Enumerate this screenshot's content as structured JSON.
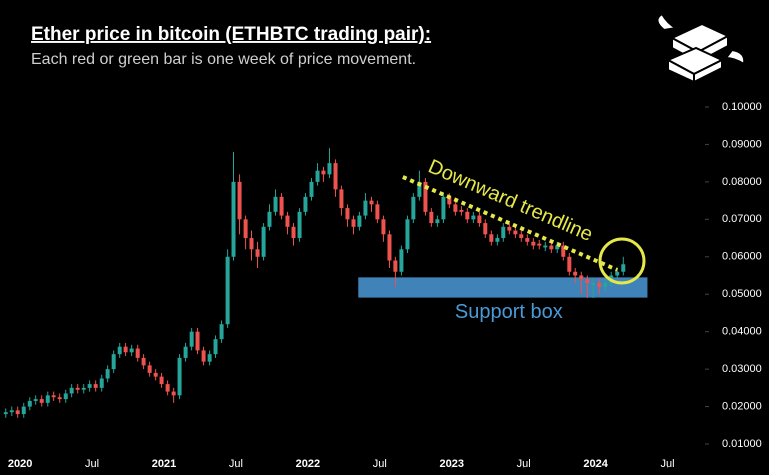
{
  "chart_data": {
    "type": "candlestick",
    "title": "Ether price in bitcoin (ETHBTC trading pair):",
    "subtitle": "Each red or green bar is one week of price movement.",
    "up_color": "#26a69a",
    "down_color": "#ef5350",
    "xlim": [
      2019.86,
      2024.76
    ],
    "ylim": [
      0.003,
      0.105
    ],
    "xticks": [
      {
        "value": 2020,
        "label": "2020"
      },
      {
        "value": 2020.5,
        "label": "Jul"
      },
      {
        "value": 2021,
        "label": "2021"
      },
      {
        "value": 2021.5,
        "label": "Jul"
      },
      {
        "value": 2022,
        "label": "2022"
      },
      {
        "value": 2022.5,
        "label": "Jul"
      },
      {
        "value": 2023,
        "label": "2023"
      },
      {
        "value": 2023.5,
        "label": "Jul"
      },
      {
        "value": 2024,
        "label": "2024"
      },
      {
        "value": 2024.5,
        "label": "Jul"
      }
    ],
    "yticks": [
      {
        "value": 0.01,
        "label": "0.01000"
      },
      {
        "value": 0.02,
        "label": "0.02000"
      },
      {
        "value": 0.03,
        "label": "0.03000"
      },
      {
        "value": 0.04,
        "label": "0.04000"
      },
      {
        "value": 0.05,
        "label": "0.05000"
      },
      {
        "value": 0.06,
        "label": "0.06000"
      },
      {
        "value": 0.07,
        "label": "0.07000"
      },
      {
        "value": 0.08,
        "label": "0.08000"
      },
      {
        "value": 0.09,
        "label": "0.09000"
      },
      {
        "value": 0.1,
        "label": "0.10000"
      }
    ],
    "x": [
      2019.9,
      2019.942,
      2019.983,
      2020.025,
      2020.067,
      2020.108,
      2020.15,
      2020.192,
      2020.233,
      2020.275,
      2020.317,
      2020.358,
      2020.4,
      2020.442,
      2020.483,
      2020.525,
      2020.567,
      2020.608,
      2020.65,
      2020.692,
      2020.733,
      2020.775,
      2020.817,
      2020.858,
      2020.9,
      2020.942,
      2020.983,
      2021.025,
      2021.067,
      2021.108,
      2021.15,
      2021.192,
      2021.233,
      2021.275,
      2021.317,
      2021.358,
      2021.4,
      2021.442,
      2021.483,
      2021.525,
      2021.567,
      2021.608,
      2021.65,
      2021.692,
      2021.733,
      2021.775,
      2021.817,
      2021.858,
      2021.9,
      2021.942,
      2021.983,
      2022.025,
      2022.067,
      2022.108,
      2022.15,
      2022.192,
      2022.233,
      2022.275,
      2022.317,
      2022.358,
      2022.4,
      2022.442,
      2022.483,
      2022.525,
      2022.567,
      2022.608,
      2022.65,
      2022.692,
      2022.733,
      2022.775,
      2022.817,
      2022.858,
      2022.9,
      2022.942,
      2022.983,
      2023.025,
      2023.067,
      2023.108,
      2023.15,
      2023.192,
      2023.233,
      2023.275,
      2023.317,
      2023.358,
      2023.4,
      2023.442,
      2023.483,
      2023.525,
      2023.567,
      2023.608,
      2023.65,
      2023.692,
      2023.733,
      2023.775,
      2023.817,
      2023.858,
      2023.9,
      2023.942,
      2023.983,
      2024.025,
      2024.067,
      2024.108,
      2024.15,
      2024.192
    ],
    "open": [
      0.018,
      0.0185,
      0.019,
      0.018,
      0.02,
      0.0215,
      0.022,
      0.021,
      0.023,
      0.0225,
      0.022,
      0.0235,
      0.025,
      0.0245,
      0.025,
      0.026,
      0.025,
      0.0275,
      0.03,
      0.034,
      0.036,
      0.0345,
      0.0355,
      0.033,
      0.031,
      0.029,
      0.028,
      0.026,
      0.024,
      0.023,
      0.033,
      0.036,
      0.04,
      0.035,
      0.032,
      0.034,
      0.038,
      0.042,
      0.06,
      0.08,
      0.07,
      0.065,
      0.062,
      0.06,
      0.068,
      0.072,
      0.076,
      0.071,
      0.068,
      0.065,
      0.072,
      0.076,
      0.08,
      0.083,
      0.082,
      0.085,
      0.078,
      0.073,
      0.07,
      0.068,
      0.071,
      0.075,
      0.074,
      0.07,
      0.066,
      0.059,
      0.056,
      0.062,
      0.07,
      0.076,
      0.08,
      0.072,
      0.069,
      0.07,
      0.076,
      0.074,
      0.0725,
      0.072,
      0.07,
      0.071,
      0.069,
      0.066,
      0.064,
      0.065,
      0.068,
      0.067,
      0.066,
      0.065,
      0.064,
      0.0635,
      0.0625,
      0.063,
      0.062,
      0.063,
      0.06,
      0.056,
      0.055,
      0.054,
      0.0525,
      0.053,
      0.052,
      0.053,
      0.055,
      0.056
    ],
    "high": [
      0.0195,
      0.02,
      0.02,
      0.021,
      0.0225,
      0.023,
      0.023,
      0.024,
      0.024,
      0.0235,
      0.0245,
      0.026,
      0.026,
      0.026,
      0.027,
      0.027,
      0.0285,
      0.031,
      0.035,
      0.037,
      0.037,
      0.0365,
      0.0365,
      0.034,
      0.032,
      0.03,
      0.029,
      0.027,
      0.025,
      0.034,
      0.037,
      0.041,
      0.041,
      0.036,
      0.035,
      0.039,
      0.043,
      0.062,
      0.088,
      0.082,
      0.071,
      0.067,
      0.064,
      0.069,
      0.074,
      0.078,
      0.077,
      0.072,
      0.069,
      0.073,
      0.077,
      0.081,
      0.085,
      0.084,
      0.089,
      0.086,
      0.079,
      0.074,
      0.071,
      0.072,
      0.077,
      0.076,
      0.075,
      0.071,
      0.067,
      0.06,
      0.063,
      0.071,
      0.077,
      0.083,
      0.081,
      0.073,
      0.071,
      0.077,
      0.077,
      0.075,
      0.0735,
      0.073,
      0.072,
      0.072,
      0.07,
      0.067,
      0.066,
      0.069,
      0.069,
      0.068,
      0.067,
      0.066,
      0.065,
      0.0645,
      0.064,
      0.064,
      0.064,
      0.064,
      0.061,
      0.057,
      0.056,
      0.055,
      0.054,
      0.054,
      0.054,
      0.056,
      0.057,
      0.06
    ],
    "low": [
      0.017,
      0.0175,
      0.017,
      0.017,
      0.019,
      0.0205,
      0.02,
      0.02,
      0.0215,
      0.021,
      0.021,
      0.0225,
      0.0235,
      0.0235,
      0.024,
      0.024,
      0.024,
      0.0265,
      0.029,
      0.033,
      0.0335,
      0.0335,
      0.032,
      0.03,
      0.028,
      0.027,
      0.025,
      0.023,
      0.021,
      0.022,
      0.032,
      0.035,
      0.034,
      0.031,
      0.031,
      0.033,
      0.037,
      0.041,
      0.059,
      0.066,
      0.062,
      0.059,
      0.057,
      0.059,
      0.067,
      0.071,
      0.07,
      0.066,
      0.063,
      0.064,
      0.071,
      0.075,
      0.079,
      0.08,
      0.081,
      0.076,
      0.071,
      0.068,
      0.066,
      0.067,
      0.07,
      0.072,
      0.069,
      0.064,
      0.057,
      0.052,
      0.055,
      0.061,
      0.069,
      0.075,
      0.071,
      0.068,
      0.068,
      0.069,
      0.073,
      0.071,
      0.071,
      0.069,
      0.069,
      0.068,
      0.065,
      0.063,
      0.063,
      0.064,
      0.066,
      0.065,
      0.064,
      0.063,
      0.062,
      0.062,
      0.0615,
      0.061,
      0.061,
      0.059,
      0.055,
      0.053,
      0.05,
      0.049,
      0.049,
      0.05,
      0.051,
      0.052,
      0.054,
      0.055
    ],
    "close": [
      0.0185,
      0.019,
      0.018,
      0.02,
      0.0215,
      0.022,
      0.021,
      0.023,
      0.0225,
      0.022,
      0.0235,
      0.025,
      0.0245,
      0.025,
      0.026,
      0.025,
      0.0275,
      0.03,
      0.034,
      0.036,
      0.0345,
      0.0355,
      0.033,
      0.031,
      0.029,
      0.028,
      0.026,
      0.024,
      0.023,
      0.033,
      0.036,
      0.04,
      0.035,
      0.032,
      0.034,
      0.038,
      0.042,
      0.06,
      0.08,
      0.07,
      0.065,
      0.062,
      0.06,
      0.068,
      0.072,
      0.076,
      0.071,
      0.068,
      0.065,
      0.072,
      0.076,
      0.08,
      0.083,
      0.082,
      0.085,
      0.078,
      0.073,
      0.07,
      0.068,
      0.071,
      0.075,
      0.074,
      0.07,
      0.066,
      0.059,
      0.056,
      0.062,
      0.07,
      0.076,
      0.08,
      0.072,
      0.069,
      0.07,
      0.076,
      0.074,
      0.072,
      0.072,
      0.07,
      0.071,
      0.069,
      0.066,
      0.064,
      0.065,
      0.068,
      0.067,
      0.066,
      0.065,
      0.064,
      0.063,
      0.063,
      0.063,
      0.062,
      0.063,
      0.06,
      0.056,
      0.055,
      0.054,
      0.053,
      0.053,
      0.052,
      0.053,
      0.055,
      0.056,
      0.058
    ],
    "trendline": {
      "label": "Downward trendline",
      "color": "#e6e84a",
      "x": [
        2022.66,
        2024.15
      ],
      "y": [
        0.0813,
        0.0565
      ]
    },
    "support_box": {
      "label": "Support box",
      "color": "#4a9ad8",
      "x": [
        2022.35,
        2024.36
      ],
      "y": [
        0.0491,
        0.0545
      ]
    }
  }
}
